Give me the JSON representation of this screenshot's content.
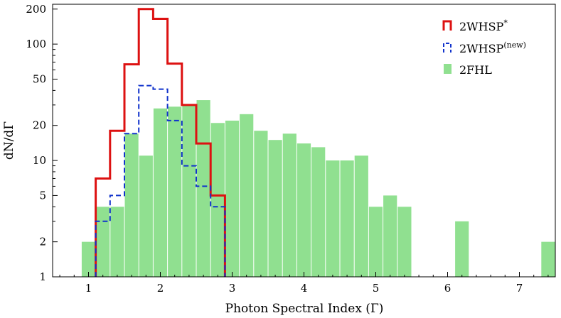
{
  "chart_data": {
    "type": "histogram",
    "xlabel": "Photon Spectral Index (Γ)",
    "ylabel": "dN/dΓ",
    "xlim": [
      0.5,
      7.5
    ],
    "ylim": [
      1,
      220
    ],
    "yscale": "log",
    "bin_width": 0.2,
    "x_ticks": [
      "1",
      "2",
      "3",
      "4",
      "5",
      "6",
      "7"
    ],
    "y_ticks": [
      "1",
      "2",
      "5",
      "10",
      "20",
      "50",
      "100",
      "200"
    ],
    "y_tick_values": [
      1,
      2,
      5,
      10,
      20,
      50,
      100,
      200
    ],
    "x_tick_values": [
      1,
      2,
      3,
      4,
      5,
      6,
      7
    ],
    "legend_position": "top-right",
    "series": [
      {
        "name": "2FHL",
        "style": "filled",
        "color": "#90e090",
        "bin_starts": [
          0.9,
          1.1,
          1.3,
          1.5,
          1.7,
          1.9,
          2.1,
          2.3,
          2.5,
          2.7,
          2.9,
          3.1,
          3.3,
          3.5,
          3.7,
          3.9,
          4.1,
          4.3,
          4.5,
          4.7,
          4.9,
          5.1,
          5.3,
          6.1,
          7.3
        ],
        "values": [
          2,
          4,
          4,
          17,
          11,
          28,
          29,
          30,
          33,
          21,
          22,
          25,
          18,
          15,
          17,
          14,
          13,
          10,
          10,
          11,
          4,
          5,
          4,
          3,
          2
        ]
      },
      {
        "name": "2WHSP*",
        "label_main": "2WHSP",
        "label_sup": "*",
        "style": "step",
        "color": "#dd1111",
        "bin_starts": [
          1.1,
          1.3,
          1.5,
          1.7,
          1.9,
          2.1,
          2.3,
          2.5,
          2.7
        ],
        "values": [
          7,
          18,
          67,
          200,
          165,
          68,
          30,
          14,
          5
        ]
      },
      {
        "name": "2WHSP(new)",
        "label_main": "2WHSP",
        "label_sup": "(new)",
        "style": "dashed-step",
        "color": "#1133cc",
        "bin_starts": [
          1.1,
          1.3,
          1.5,
          1.7,
          1.9,
          2.1,
          2.3,
          2.5,
          2.7
        ],
        "values": [
          3,
          5,
          17,
          44,
          41,
          22,
          9,
          6,
          4
        ]
      }
    ]
  }
}
